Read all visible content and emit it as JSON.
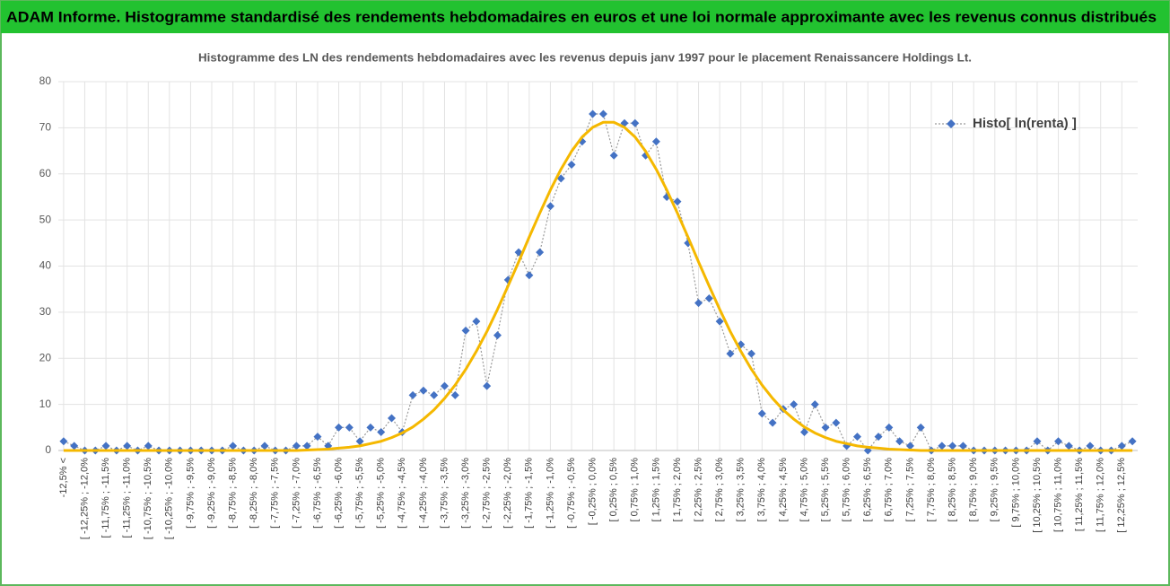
{
  "header": {
    "title": "ADAM Informe. Histogramme standardisé des rendements hebdomadaires en euros et une loi normale approximante avec les revenus connus distribués"
  },
  "chart_data": {
    "type": "line",
    "title": "Histogramme des LN des rendements hebdomadaires avec les revenus depuis janv 1997 pour le placement Renaissancere Holdings Lt.",
    "categories": [
      "-12,5% <",
      null,
      "[ -12,25% ; -12,0%",
      null,
      "[ -11,75% ; -11,5%",
      null,
      "[ -11,25% ; -11,0%",
      null,
      "[ -10,75% ; -10,5%",
      null,
      "[ -10,25% ; -10,0%",
      null,
      "[ -9,75% ; -9,5%",
      null,
      "[ -9,25% ; -9,0%",
      null,
      "[ -8,75% ; -8,5%",
      null,
      "[ -8,25% ; -8,0%",
      null,
      "[ -7,75% ; -7,5%",
      null,
      "[ -7,25% ; -7,0%",
      null,
      "[ -6,75% ; -6,5%",
      null,
      "[ -6,25% ; -6,0%",
      null,
      "[ -5,75% ; -5,5%",
      null,
      "[ -5,25% ; -5,0%",
      null,
      "[ -4,75% ; -4,5%",
      null,
      "[ -4,25% ; -4,0%",
      null,
      "[ -3,75% ; -3,5%",
      null,
      "[ -3,25% ; -3,0%",
      null,
      "[ -2,75% ; -2,5%",
      null,
      "[ -2,25% ; -2,0%",
      null,
      "[ -1,75% ; -1,5%",
      null,
      "[ -1,25% ; -1,0%",
      null,
      "[ -0,75% ; -0,5%",
      null,
      "[ -0,25% ; 0,0%",
      null,
      "[ 0,25% ; 0,5%",
      null,
      "[ 0,75% ; 1,0%",
      null,
      "[ 1,25% ; 1,5%",
      null,
      "[ 1,75% ; 2,0%",
      null,
      "[ 2,25% ; 2,5%",
      null,
      "[ 2,75% ; 3,0%",
      null,
      "[ 3,25% ; 3,5%",
      null,
      "[ 3,75% ; 4,0%",
      null,
      "[ 4,25% ; 4,5%",
      null,
      "[ 4,75% ; 5,0%",
      null,
      "[ 5,25% ; 5,5%",
      null,
      "[ 5,75% ; 6,0%",
      null,
      "[ 6,25% ; 6,5%",
      null,
      "[ 6,75% ; 7,0%",
      null,
      "[ 7,25% ; 7,5%",
      null,
      "[ 7,75% ; 8,0%",
      null,
      "[ 8,25% ; 8,5%",
      null,
      "[ 8,75% ; 9,0%",
      null,
      "[ 9,25% ; 9,5%",
      null,
      "[ 9,75% ; 10,0%",
      null,
      "[ 10,25% ; 10,5%",
      null,
      "[ 10,75% ; 11,0%",
      null,
      "[ 11,25% ; 11,5%",
      null,
      "[ 11,75% ; 12,0%",
      null,
      "[ 12,25% ; 12,5%",
      null
    ],
    "series": [
      {
        "name": "Histo[ ln(renta) ]",
        "color": "#4472c4",
        "marker": "diamond",
        "values": [
          2,
          1,
          0,
          0,
          1,
          0,
          1,
          0,
          1,
          0,
          0,
          0,
          0,
          0,
          0,
          0,
          1,
          0,
          0,
          1,
          0,
          0,
          1,
          1,
          3,
          1,
          5,
          5,
          2,
          5,
          4,
          7,
          4,
          12,
          13,
          12,
          14,
          12,
          26,
          28,
          14,
          25,
          37,
          43,
          38,
          43,
          53,
          59,
          62,
          67,
          73,
          73,
          64,
          71,
          71,
          64,
          67,
          55,
          54,
          45,
          32,
          33,
          28,
          21,
          23,
          21,
          8,
          6,
          9,
          10,
          4,
          10,
          5,
          6,
          1,
          3,
          0,
          3,
          5,
          2,
          1,
          5,
          0,
          1,
          1,
          1,
          0,
          0,
          0,
          0,
          0,
          0,
          2,
          0,
          2,
          1,
          0,
          1,
          0,
          0,
          1,
          2
        ]
      },
      {
        "color": "#f5b800",
        "marker": "none",
        "values": [
          0,
          0,
          0,
          0,
          0,
          0,
          0,
          0,
          0,
          0,
          0,
          0,
          0,
          0,
          0,
          0,
          0,
          0,
          0,
          0,
          0,
          0,
          0,
          0.1,
          0.2,
          0.3,
          0.5,
          0.7,
          1.0,
          1.5,
          2.0,
          2.8,
          3.8,
          5.1,
          6.8,
          8.8,
          11.3,
          14.2,
          17.6,
          21.5,
          25.8,
          30.6,
          35.7,
          40.9,
          46.3,
          51.5,
          56.5,
          61.0,
          64.9,
          68.0,
          70.1,
          71.2,
          71.2,
          70.1,
          68.0,
          64.9,
          61.0,
          56.5,
          51.5,
          46.3,
          40.9,
          35.7,
          30.6,
          25.8,
          21.5,
          17.6,
          14.2,
          11.3,
          8.8,
          6.8,
          5.1,
          3.8,
          2.8,
          2.0,
          1.5,
          1.0,
          0.7,
          0.5,
          0.3,
          0.2,
          0.1,
          0,
          0,
          0,
          0,
          0,
          0,
          0,
          0,
          0,
          0,
          0,
          0,
          0,
          0,
          0,
          0,
          0,
          0,
          0,
          0,
          0
        ]
      }
    ],
    "ylim": [
      0,
      80
    ],
    "yticks": [
      0,
      10,
      20,
      30,
      40,
      50,
      60,
      70,
      80
    ],
    "grid": true,
    "legend": "top-right"
  }
}
